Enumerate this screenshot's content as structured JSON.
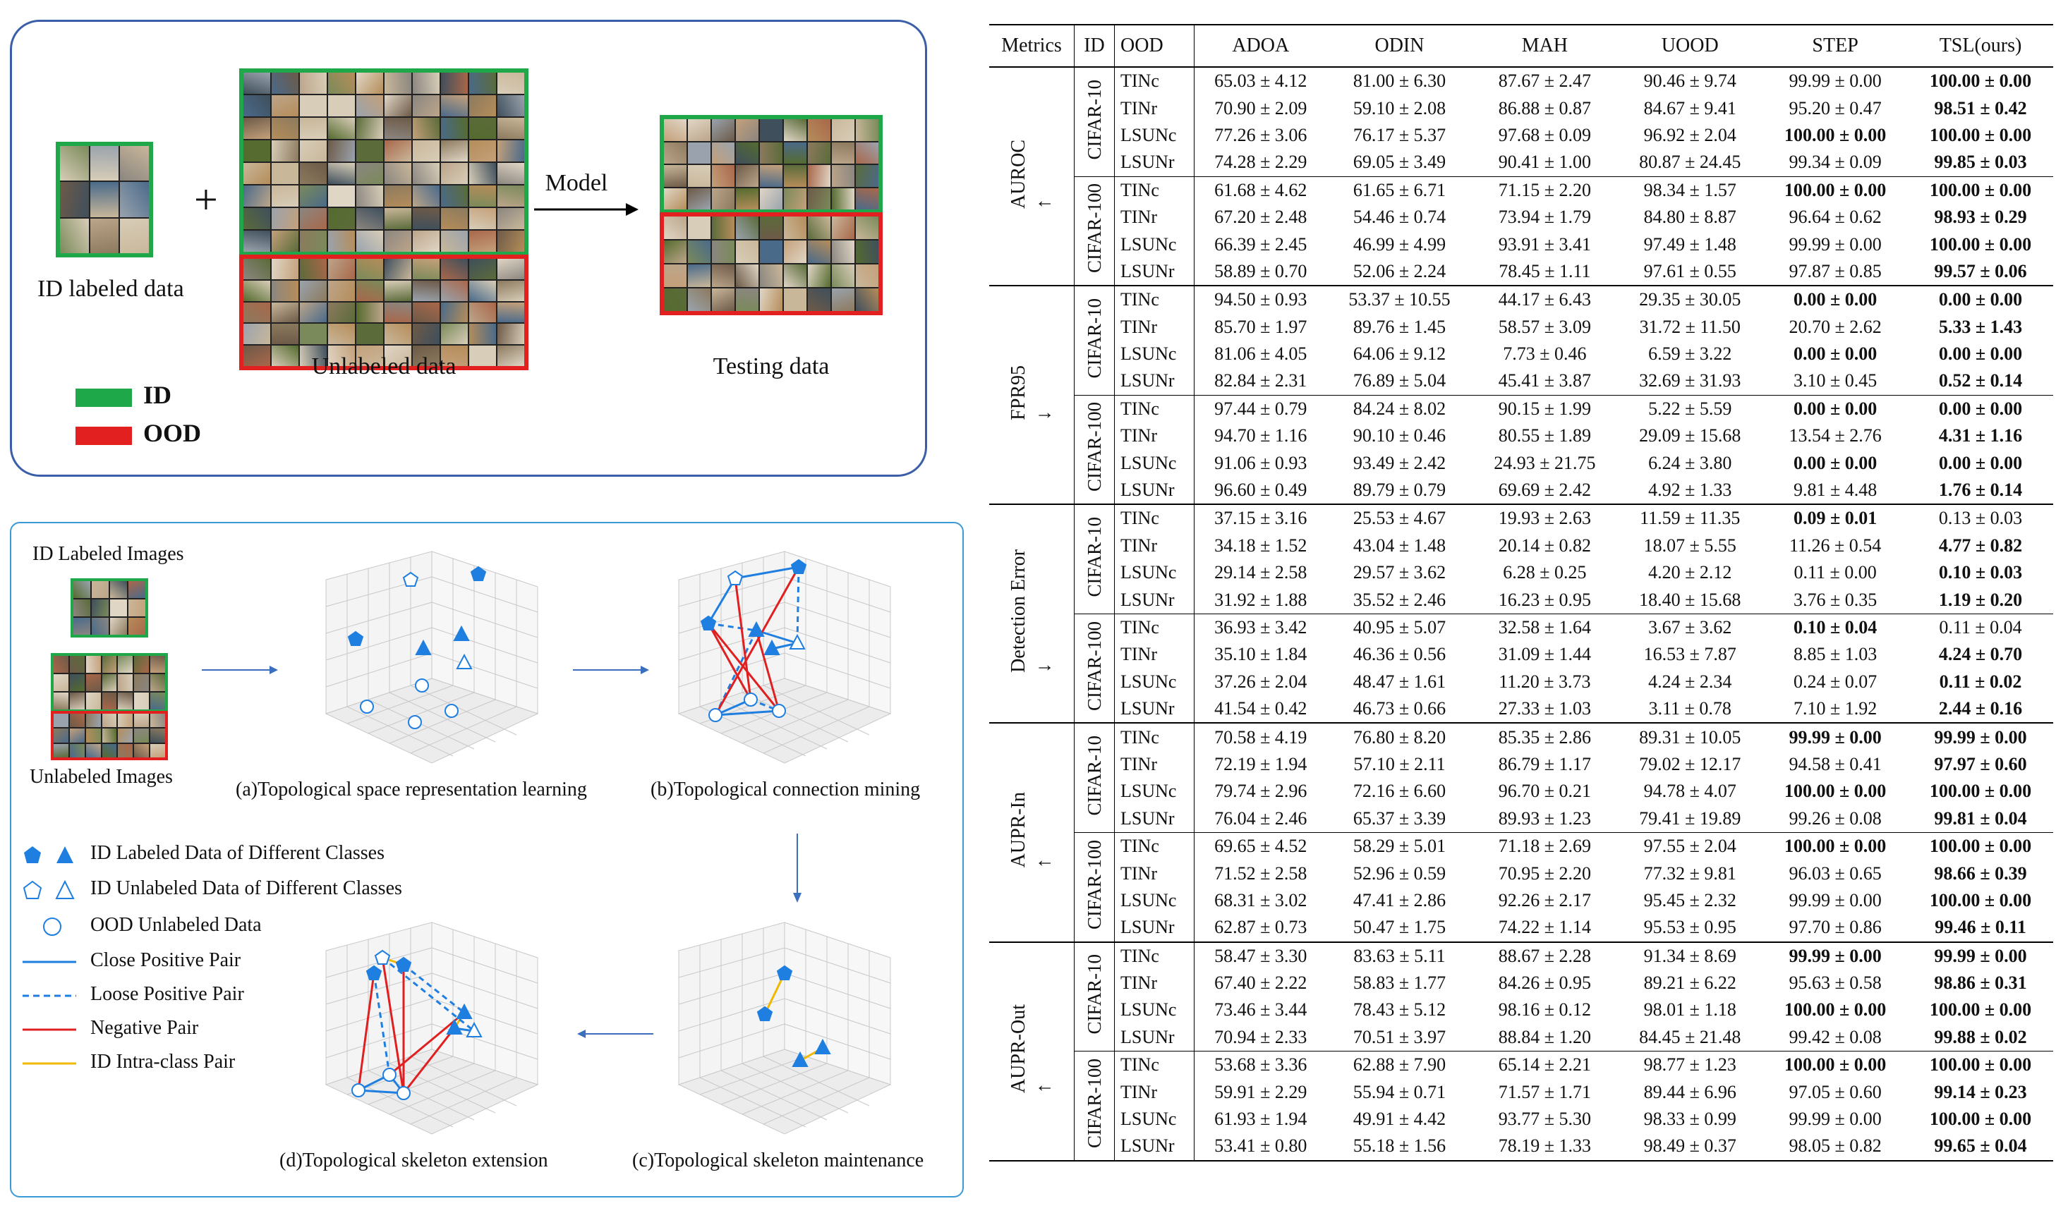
{
  "setting": {
    "id_labeled_caption": "ID labeled data",
    "unlabeled_caption": "Unlabeled data",
    "testing_caption": "Testing data",
    "model_label": "Model",
    "plus": "+",
    "legend": [
      {
        "label": "ID",
        "color": "#1fa84a"
      },
      {
        "label": "OOD",
        "color": "#e32020"
      }
    ]
  },
  "method": {
    "id_labeled_images": "ID Labeled Images",
    "unlabeled_images": "Unlabeled Images",
    "step_a": "(a)Topological space representation learning",
    "step_b": "(b)Topological connection mining",
    "step_c": "(c)Topological skeleton maintenance",
    "step_d": "(d)Topological skeleton extension",
    "legend": [
      "ID Labeled Data of Different Classes",
      "ID Unlabeled Data of Different Classes",
      "OOD Unlabeled Data",
      "Close Positive Pair",
      "Loose Positive Pair",
      "Negative Pair",
      "ID Intra-class Pair"
    ],
    "colors": {
      "blue": "#1f7fe0",
      "red": "#e02020",
      "yellow": "#f0b800"
    }
  },
  "table": {
    "headers": [
      "Metrics",
      "ID",
      "OOD",
      "ADOA",
      "ODIN",
      "MAH",
      "UOOD",
      "STEP",
      "TSL(ours)"
    ],
    "groups": [
      {
        "metric": "AUROC",
        "arrow": "↑",
        "ids": [
          {
            "id": "CIFAR-10",
            "rows": [
              {
                "ood": "TINc",
                "v": [
                  "65.03 ± 4.12",
                  "81.00 ± 6.30",
                  "87.67 ± 2.47",
                  "90.46 ± 9.74",
                  "99.99 ± 0.00",
                  "100.00 ± 0.00"
                ],
                "bold": [
                  5
                ]
              },
              {
                "ood": "TINr",
                "v": [
                  "70.90 ± 2.09",
                  "59.10 ± 2.08",
                  "86.88 ± 0.87",
                  "84.67 ± 9.41",
                  "95.20 ± 0.47",
                  "98.51 ± 0.42"
                ],
                "bold": [
                  5
                ]
              },
              {
                "ood": "LSUNc",
                "v": [
                  "77.26 ± 3.06",
                  "76.17 ± 5.37",
                  "97.68 ± 0.09",
                  "96.92 ± 2.04",
                  "100.00 ± 0.00",
                  "100.00 ± 0.00"
                ],
                "bold": [
                  4,
                  5
                ]
              },
              {
                "ood": "LSUNr",
                "v": [
                  "74.28 ± 2.29",
                  "69.05 ± 3.49",
                  "90.41 ± 1.00",
                  "80.87 ± 24.45",
                  "99.34 ± 0.09",
                  "99.85 ± 0.03"
                ],
                "bold": [
                  5
                ]
              }
            ]
          },
          {
            "id": "CIFAR-100",
            "rows": [
              {
                "ood": "TINc",
                "v": [
                  "61.68 ± 4.62",
                  "61.65 ± 6.71",
                  "71.15 ± 2.20",
                  "98.34 ± 1.57",
                  "100.00 ± 0.00",
                  "100.00 ± 0.00"
                ],
                "bold": [
                  4,
                  5
                ]
              },
              {
                "ood": "TINr",
                "v": [
                  "67.20 ± 2.48",
                  "54.46 ± 0.74",
                  "73.94 ± 1.79",
                  "84.80 ± 8.87",
                  "96.64 ± 0.62",
                  "98.93 ± 0.29"
                ],
                "bold": [
                  5
                ]
              },
              {
                "ood": "LSUNc",
                "v": [
                  "66.39 ± 2.45",
                  "46.99 ± 4.99",
                  "93.91 ± 3.41",
                  "97.49 ± 1.48",
                  "99.99 ± 0.00",
                  "100.00 ± 0.00"
                ],
                "bold": [
                  5
                ]
              },
              {
                "ood": "LSUNr",
                "v": [
                  "58.89 ± 0.70",
                  "52.06 ± 2.24",
                  "78.45 ± 1.11",
                  "97.61 ± 0.55",
                  "97.87 ± 0.85",
                  "99.57 ± 0.06"
                ],
                "bold": [
                  5
                ]
              }
            ]
          }
        ]
      },
      {
        "metric": "FPR95",
        "arrow": "↓",
        "ids": [
          {
            "id": "CIFAR-10",
            "rows": [
              {
                "ood": "TINc",
                "v": [
                  "94.50 ± 0.93",
                  "53.37 ± 10.55",
                  "44.17 ± 6.43",
                  "29.35 ± 30.05",
                  "0.00 ± 0.00",
                  "0.00 ± 0.00"
                ],
                "bold": [
                  4,
                  5
                ]
              },
              {
                "ood": "TINr",
                "v": [
                  "85.70 ± 1.97",
                  "89.76 ± 1.45",
                  "58.57 ± 3.09",
                  "31.72 ± 11.50",
                  "20.70 ± 2.62",
                  "5.33 ± 1.43"
                ],
                "bold": [
                  5
                ]
              },
              {
                "ood": "LSUNc",
                "v": [
                  "81.06 ± 4.05",
                  "64.06 ± 9.12",
                  "7.73 ± 0.46",
                  "6.59 ± 3.22",
                  "0.00 ± 0.00",
                  "0.00 ± 0.00"
                ],
                "bold": [
                  4,
                  5
                ]
              },
              {
                "ood": "LSUNr",
                "v": [
                  "82.84 ± 2.31",
                  "76.89 ± 5.04",
                  "45.41 ± 3.87",
                  "32.69 ± 31.93",
                  "3.10 ± 0.45",
                  "0.52 ± 0.14"
                ],
                "bold": [
                  5
                ]
              }
            ]
          },
          {
            "id": "CIFAR-100",
            "rows": [
              {
                "ood": "TINc",
                "v": [
                  "97.44 ± 0.79",
                  "84.24 ± 8.02",
                  "90.15 ± 1.99",
                  "5.22 ± 5.59",
                  "0.00 ± 0.00",
                  "0.00 ± 0.00"
                ],
                "bold": [
                  4,
                  5
                ]
              },
              {
                "ood": "TINr",
                "v": [
                  "94.70 ± 1.16",
                  "90.10 ± 0.46",
                  "80.55 ± 1.89",
                  "29.09 ± 15.68",
                  "13.54 ± 2.76",
                  "4.31 ± 1.16"
                ],
                "bold": [
                  5
                ]
              },
              {
                "ood": "LSUNc",
                "v": [
                  "91.06 ± 0.93",
                  "93.49 ± 2.42",
                  "24.93 ± 21.75",
                  "6.24 ± 3.80",
                  "0.00 ± 0.00",
                  "0.00 ± 0.00"
                ],
                "bold": [
                  4,
                  5
                ]
              },
              {
                "ood": "LSUNr",
                "v": [
                  "96.60 ± 0.49",
                  "89.79 ± 0.79",
                  "69.69 ± 2.42",
                  "4.92 ± 1.33",
                  "9.81 ± 4.48",
                  "1.76 ± 0.14"
                ],
                "bold": [
                  5
                ]
              }
            ]
          }
        ]
      },
      {
        "metric": "Detection Error",
        "arrow": "↓",
        "ids": [
          {
            "id": "CIFAR-10",
            "rows": [
              {
                "ood": "TINc",
                "v": [
                  "37.15 ± 3.16",
                  "25.53 ± 4.67",
                  "19.93 ± 2.63",
                  "11.59 ± 11.35",
                  "0.09 ± 0.01",
                  "0.13 ± 0.03"
                ],
                "bold": [
                  4
                ]
              },
              {
                "ood": "TINr",
                "v": [
                  "34.18 ± 1.52",
                  "43.04 ± 1.48",
                  "20.14 ± 0.82",
                  "18.07 ± 5.55",
                  "11.26 ± 0.54",
                  "4.77 ± 0.82"
                ],
                "bold": [
                  5
                ]
              },
              {
                "ood": "LSUNc",
                "v": [
                  "29.14 ± 2.58",
                  "29.57 ± 3.62",
                  "6.28 ± 0.25",
                  "4.20 ± 2.12",
                  "0.11 ± 0.00",
                  "0.10 ± 0.03"
                ],
                "bold": [
                  5
                ]
              },
              {
                "ood": "LSUNr",
                "v": [
                  "31.92 ± 1.88",
                  "35.52 ± 2.46",
                  "16.23 ± 0.95",
                  "18.40 ± 15.68",
                  "3.76 ± 0.35",
                  "1.19 ± 0.20"
                ],
                "bold": [
                  5
                ]
              }
            ]
          },
          {
            "id": "CIFAR-100",
            "rows": [
              {
                "ood": "TINc",
                "v": [
                  "36.93 ± 3.42",
                  "40.95 ± 5.07",
                  "32.58 ± 1.64",
                  "3.67 ± 3.62",
                  "0.10 ± 0.04",
                  "0.11 ± 0.04"
                ],
                "bold": [
                  4
                ]
              },
              {
                "ood": "TINr",
                "v": [
                  "35.10 ± 1.84",
                  "46.36 ± 0.56",
                  "31.09 ± 1.44",
                  "16.53 ± 7.87",
                  "8.85 ± 1.03",
                  "4.24 ± 0.70"
                ],
                "bold": [
                  5
                ]
              },
              {
                "ood": "LSUNc",
                "v": [
                  "37.26 ± 2.04",
                  "48.47 ± 1.61",
                  "11.20 ± 3.73",
                  "4.24 ± 2.34",
                  "0.24 ± 0.07",
                  "0.11 ± 0.02"
                ],
                "bold": [
                  5
                ]
              },
              {
                "ood": "LSUNr",
                "v": [
                  "41.54 ± 0.42",
                  "46.73 ± 0.66",
                  "27.33 ± 1.03",
                  "3.11 ± 0.78",
                  "7.10 ± 1.92",
                  "2.44 ± 0.16"
                ],
                "bold": [
                  5
                ]
              }
            ]
          }
        ]
      },
      {
        "metric": "AUPR-In",
        "arrow": "↑",
        "ids": [
          {
            "id": "CIFAR-10",
            "rows": [
              {
                "ood": "TINc",
                "v": [
                  "70.58 ± 4.19",
                  "76.80 ± 8.20",
                  "85.35 ± 2.86",
                  "89.31 ± 10.05",
                  "99.99 ± 0.00",
                  "99.99 ± 0.00"
                ],
                "bold": [
                  4,
                  5
                ]
              },
              {
                "ood": "TINr",
                "v": [
                  "72.19 ± 1.94",
                  "57.10 ± 2.11",
                  "86.79 ± 1.17",
                  "79.02 ± 12.17",
                  "94.58 ± 0.41",
                  "97.97 ± 0.60"
                ],
                "bold": [
                  5
                ]
              },
              {
                "ood": "LSUNc",
                "v": [
                  "79.74 ± 2.96",
                  "72.16 ± 6.60",
                  "96.70 ± 0.21",
                  "94.78 ± 4.07",
                  "100.00 ± 0.00",
                  "100.00 ± 0.00"
                ],
                "bold": [
                  4,
                  5
                ]
              },
              {
                "ood": "LSUNr",
                "v": [
                  "76.04 ± 2.46",
                  "65.37 ± 3.39",
                  "89.93 ± 1.23",
                  "79.41 ± 19.89",
                  "99.26 ± 0.08",
                  "99.81 ± 0.04"
                ],
                "bold": [
                  5
                ]
              }
            ]
          },
          {
            "id": "CIFAR-100",
            "rows": [
              {
                "ood": "TINc",
                "v": [
                  "69.65 ± 4.52",
                  "58.29 ± 5.01",
                  "71.18 ± 2.69",
                  "97.55 ± 2.04",
                  "100.00 ± 0.00",
                  "100.00 ± 0.00"
                ],
                "bold": [
                  4,
                  5
                ]
              },
              {
                "ood": "TINr",
                "v": [
                  "71.52 ± 2.58",
                  "52.96 ± 0.59",
                  "70.95 ± 2.20",
                  "77.32 ± 9.81",
                  "96.03 ± 0.65",
                  "98.66 ± 0.39"
                ],
                "bold": [
                  5
                ]
              },
              {
                "ood": "LSUNc",
                "v": [
                  "68.31 ± 3.02",
                  "47.41 ± 2.86",
                  "92.26 ± 2.17",
                  "95.45 ± 2.32",
                  "99.99 ± 0.00",
                  "100.00 ± 0.00"
                ],
                "bold": [
                  5
                ]
              },
              {
                "ood": "LSUNr",
                "v": [
                  "62.87 ± 0.73",
                  "50.47 ± 1.75",
                  "74.22 ± 1.14",
                  "95.53 ± 0.95",
                  "97.70 ± 0.86",
                  "99.46 ± 0.11"
                ],
                "bold": [
                  5
                ]
              }
            ]
          }
        ]
      },
      {
        "metric": "AUPR-Out",
        "arrow": "↑",
        "ids": [
          {
            "id": "CIFAR-10",
            "rows": [
              {
                "ood": "TINc",
                "v": [
                  "58.47 ± 3.30",
                  "83.63 ± 5.11",
                  "88.67 ± 2.28",
                  "91.34 ± 8.69",
                  "99.99 ± 0.00",
                  "99.99 ± 0.00"
                ],
                "bold": [
                  4,
                  5
                ]
              },
              {
                "ood": "TINr",
                "v": [
                  "67.40 ± 2.22",
                  "58.83 ± 1.77",
                  "84.26 ± 0.95",
                  "89.21 ± 6.22",
                  "95.63 ± 0.58",
                  "98.86 ± 0.31"
                ],
                "bold": [
                  5
                ]
              },
              {
                "ood": "LSUNc",
                "v": [
                  "73.46 ± 3.44",
                  "78.43 ± 5.12",
                  "98.16 ± 0.12",
                  "98.01 ± 1.18",
                  "100.00 ± 0.00",
                  "100.00 ± 0.00"
                ],
                "bold": [
                  4,
                  5
                ]
              },
              {
                "ood": "LSUNr",
                "v": [
                  "70.94 ± 2.33",
                  "70.51 ± 3.97",
                  "88.84 ± 1.20",
                  "84.45 ± 21.48",
                  "99.42 ± 0.08",
                  "99.88 ± 0.02"
                ],
                "bold": [
                  5
                ]
              }
            ]
          },
          {
            "id": "CIFAR-100",
            "rows": [
              {
                "ood": "TINc",
                "v": [
                  "53.68 ± 3.36",
                  "62.88 ± 7.90",
                  "65.14 ± 2.21",
                  "98.77 ± 1.23",
                  "100.00 ± 0.00",
                  "100.00 ± 0.00"
                ],
                "bold": [
                  4,
                  5
                ]
              },
              {
                "ood": "TINr",
                "v": [
                  "59.91 ± 2.29",
                  "55.94 ± 0.71",
                  "71.57 ± 1.71",
                  "89.44 ± 6.96",
                  "97.05 ± 0.60",
                  "99.14 ± 0.23"
                ],
                "bold": [
                  5
                ]
              },
              {
                "ood": "LSUNc",
                "v": [
                  "61.93 ± 1.94",
                  "49.91 ± 4.42",
                  "93.77 ± 5.30",
                  "98.33 ± 0.99",
                  "99.99 ± 0.00",
                  "100.00 ± 0.00"
                ],
                "bold": [
                  5
                ]
              },
              {
                "ood": "LSUNr",
                "v": [
                  "53.41 ± 0.80",
                  "55.18 ± 1.56",
                  "78.19 ± 1.33",
                  "98.49 ± 0.37",
                  "98.05 ± 0.82",
                  "99.65 ± 0.04"
                ],
                "bold": [
                  5
                ]
              }
            ]
          }
        ]
      }
    ]
  }
}
